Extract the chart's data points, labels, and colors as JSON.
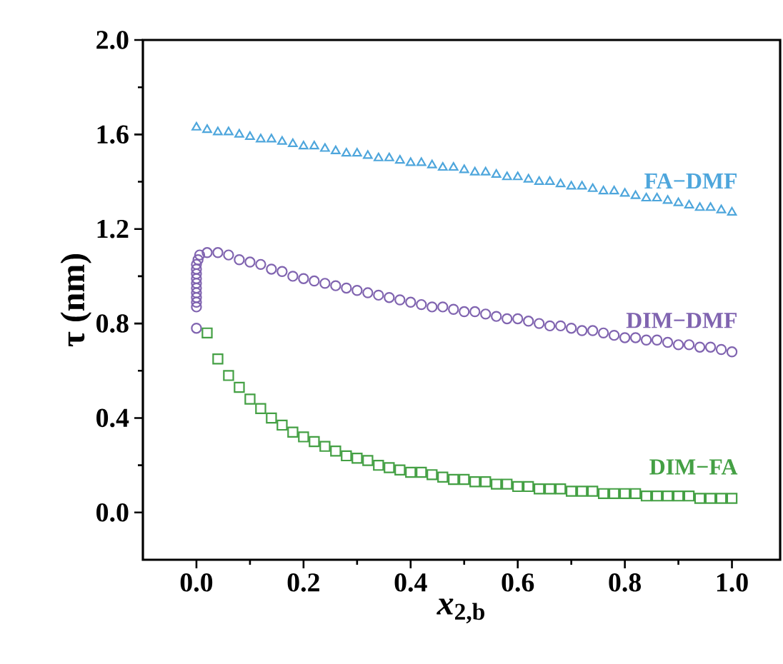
{
  "chart_data": {
    "type": "scatter",
    "xlabel": "*x*$_{2,b}$",
    "ylabel": "τ (nm)",
    "xlim": [
      -0.1,
      1.09
    ],
    "ylim": [
      -0.2,
      2.0
    ],
    "xticks": [
      {
        "value": 0,
        "label": "0.0"
      },
      {
        "value": 0.2,
        "label": "0.2"
      },
      {
        "value": 0.4,
        "label": "0.4"
      },
      {
        "value": 0.6,
        "label": "0.6"
      },
      {
        "value": 0.8,
        "label": "0.8"
      },
      {
        "value": 1.0,
        "label": "1.0"
      }
    ],
    "yticks": [
      {
        "value": 0,
        "label": "0.0"
      },
      {
        "value": 0.4,
        "label": "0.4"
      },
      {
        "value": 0.8,
        "label": "0.8"
      },
      {
        "value": 1.2,
        "label": "1.2"
      },
      {
        "value": 1.6,
        "label": "1.6"
      },
      {
        "value": 2.0,
        "label": "2.0"
      }
    ],
    "grid": false,
    "series": [
      {
        "name": "FA−DMF",
        "color": "#4ea6dc",
        "marker": "triangle",
        "x": [
          0,
          0.02,
          0.04,
          0.06,
          0.08,
          0.1,
          0.12,
          0.14,
          0.16,
          0.18,
          0.2,
          0.22,
          0.24,
          0.26,
          0.28,
          0.3,
          0.32,
          0.34,
          0.36,
          0.38,
          0.4,
          0.42,
          0.44,
          0.46,
          0.48,
          0.5,
          0.52,
          0.54,
          0.56,
          0.58,
          0.6,
          0.62,
          0.64,
          0.66,
          0.68,
          0.7,
          0.72,
          0.74,
          0.76,
          0.78,
          0.8,
          0.82,
          0.84,
          0.86,
          0.88,
          0.9,
          0.92,
          0.94,
          0.96,
          0.98,
          1.0
        ],
        "values": [
          1.63,
          1.62,
          1.61,
          1.61,
          1.6,
          1.59,
          1.58,
          1.58,
          1.57,
          1.56,
          1.55,
          1.55,
          1.54,
          1.53,
          1.52,
          1.52,
          1.51,
          1.5,
          1.5,
          1.49,
          1.48,
          1.48,
          1.47,
          1.46,
          1.46,
          1.45,
          1.44,
          1.44,
          1.43,
          1.42,
          1.42,
          1.41,
          1.4,
          1.4,
          1.39,
          1.38,
          1.38,
          1.37,
          1.36,
          1.36,
          1.35,
          1.34,
          1.33,
          1.33,
          1.32,
          1.31,
          1.3,
          1.29,
          1.29,
          1.28,
          1.27
        ]
      },
      {
        "name": "DIM−DMF",
        "color": "#8064b0",
        "marker": "circle",
        "x": [
          0,
          0,
          0,
          0,
          0,
          0,
          0,
          0,
          0,
          0,
          0,
          0.003,
          0.006,
          0.02,
          0.04,
          0.06,
          0.08,
          0.1,
          0.12,
          0.14,
          0.16,
          0.18,
          0.2,
          0.22,
          0.24,
          0.26,
          0.28,
          0.3,
          0.32,
          0.34,
          0.36,
          0.38,
          0.4,
          0.42,
          0.44,
          0.46,
          0.48,
          0.5,
          0.52,
          0.54,
          0.56,
          0.58,
          0.6,
          0.62,
          0.64,
          0.66,
          0.68,
          0.7,
          0.72,
          0.74,
          0.76,
          0.78,
          0.8,
          0.82,
          0.84,
          0.86,
          0.88,
          0.9,
          0.92,
          0.94,
          0.96,
          0.98,
          1.0
        ],
        "values": [
          0.78,
          0.87,
          0.89,
          0.91,
          0.93,
          0.95,
          0.97,
          0.99,
          1.01,
          1.03,
          1.05,
          1.07,
          1.09,
          1.1,
          1.1,
          1.09,
          1.07,
          1.06,
          1.05,
          1.03,
          1.02,
          1.0,
          0.99,
          0.98,
          0.97,
          0.96,
          0.95,
          0.94,
          0.93,
          0.92,
          0.91,
          0.9,
          0.89,
          0.88,
          0.87,
          0.87,
          0.86,
          0.85,
          0.85,
          0.84,
          0.83,
          0.82,
          0.82,
          0.81,
          0.8,
          0.79,
          0.79,
          0.78,
          0.77,
          0.77,
          0.76,
          0.75,
          0.74,
          0.74,
          0.73,
          0.73,
          0.72,
          0.71,
          0.71,
          0.7,
          0.7,
          0.69,
          0.68
        ]
      },
      {
        "name": "DIM−FA",
        "color": "#44a044",
        "marker": "square",
        "x": [
          0.02,
          0.04,
          0.06,
          0.08,
          0.1,
          0.12,
          0.14,
          0.16,
          0.18,
          0.2,
          0.22,
          0.24,
          0.26,
          0.28,
          0.3,
          0.32,
          0.34,
          0.36,
          0.38,
          0.4,
          0.42,
          0.44,
          0.46,
          0.48,
          0.5,
          0.52,
          0.54,
          0.56,
          0.58,
          0.6,
          0.62,
          0.64,
          0.66,
          0.68,
          0.7,
          0.72,
          0.74,
          0.76,
          0.78,
          0.8,
          0.82,
          0.84,
          0.86,
          0.88,
          0.9,
          0.92,
          0.94,
          0.96,
          0.98,
          1.0
        ],
        "values": [
          0.76,
          0.65,
          0.58,
          0.53,
          0.48,
          0.44,
          0.4,
          0.37,
          0.34,
          0.32,
          0.3,
          0.28,
          0.26,
          0.24,
          0.23,
          0.22,
          0.2,
          0.19,
          0.18,
          0.17,
          0.17,
          0.16,
          0.15,
          0.14,
          0.14,
          0.13,
          0.13,
          0.12,
          0.12,
          0.11,
          0.11,
          0.1,
          0.1,
          0.1,
          0.09,
          0.09,
          0.09,
          0.08,
          0.08,
          0.08,
          0.08,
          0.07,
          0.07,
          0.07,
          0.07,
          0.07,
          0.06,
          0.06,
          0.06,
          0.06
        ]
      }
    ]
  }
}
